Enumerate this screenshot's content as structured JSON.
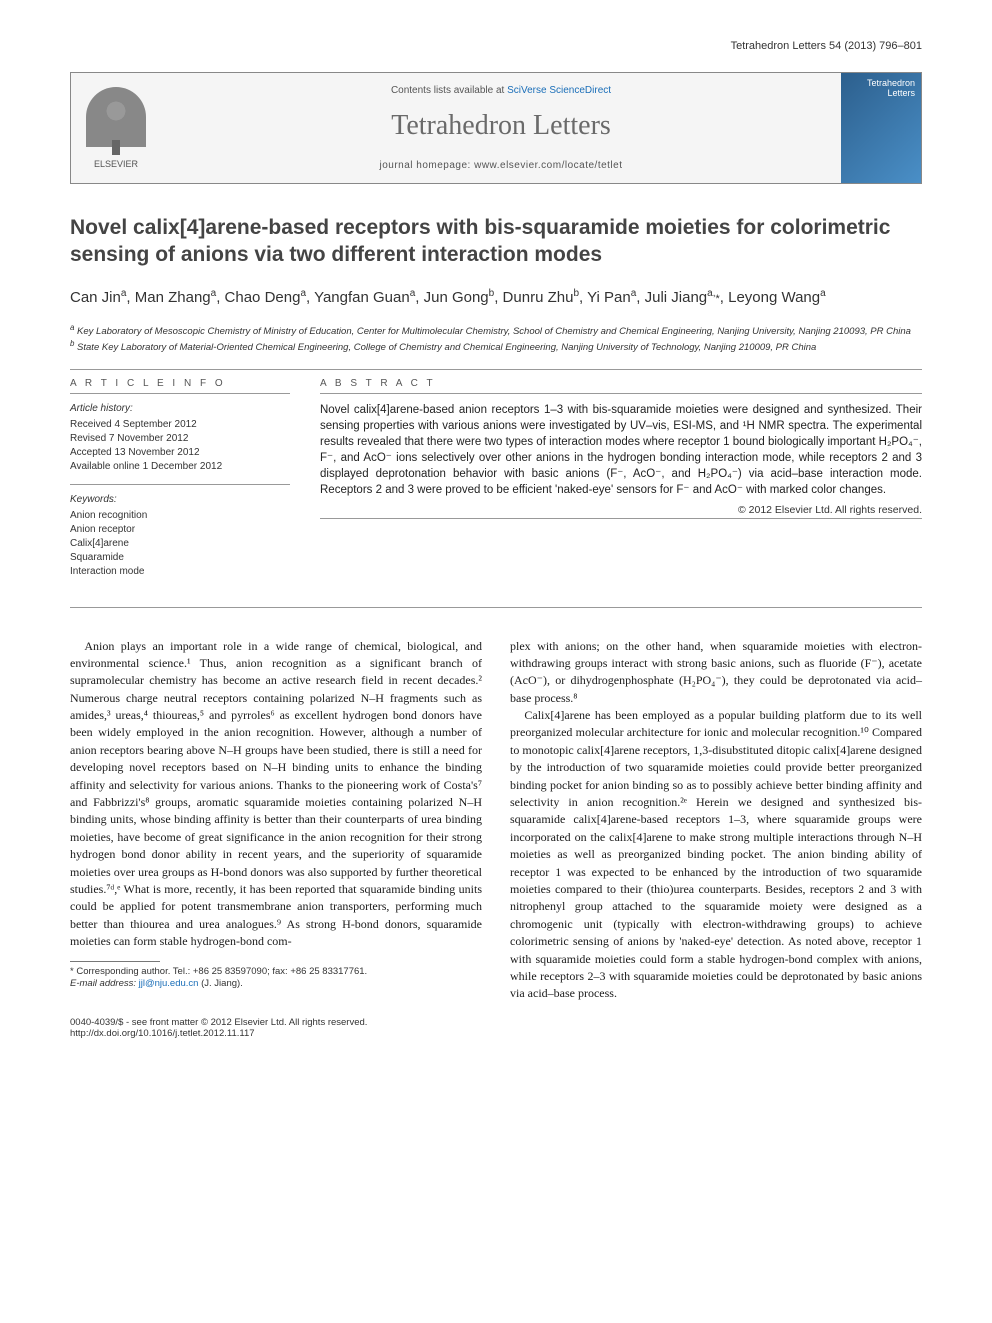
{
  "running_head": "Tetrahedron Letters 54 (2013) 796–801",
  "header": {
    "contents_prefix": "Contents lists available at ",
    "contents_link": "SciVerse ScienceDirect",
    "journal_name": "Tetrahedron Letters",
    "homepage_label": "journal homepage: ",
    "homepage_url": "www.elsevier.com/locate/tetlet",
    "publisher": "ELSEVIER",
    "cover_title": "Tetrahedron Letters"
  },
  "title": "Novel calix[4]arene-based receptors with bis-squaramide moieties for colorimetric sensing of anions via two different interaction modes",
  "authors_html": "Can Jin<sup>a</sup>, Man Zhang<sup>a</sup>, Chao Deng<sup>a</sup>, Yangfan Guan<sup>a</sup>, Jun Gong<sup>b</sup>, Dunru Zhu<sup>b</sup>, Yi Pan<sup>a</sup>, Juli Jiang<sup>a,</sup><span class='corr'>*</span>, Leyong Wang<sup>a</sup>",
  "affiliations": {
    "a": "Key Laboratory of Mesoscopic Chemistry of Ministry of Education, Center for Multimolecular Chemistry, School of Chemistry and Chemical Engineering, Nanjing University, Nanjing 210093, PR China",
    "b": "State Key Laboratory of Material-Oriented Chemical Engineering, College of Chemistry and Chemical Engineering, Nanjing University of Technology, Nanjing 210009, PR China"
  },
  "article_info": {
    "heading": "A R T I C L E   I N F O",
    "history_label": "Article history:",
    "received": "Received 4 September 2012",
    "revised": "Revised 7 November 2012",
    "accepted": "Accepted 13 November 2012",
    "online": "Available online 1 December 2012",
    "keywords_label": "Keywords:",
    "keywords": [
      "Anion recognition",
      "Anion receptor",
      "Calix[4]arene",
      "Squaramide",
      "Interaction mode"
    ]
  },
  "abstract": {
    "heading": "A B S T R A C T",
    "text": "Novel calix[4]arene-based anion receptors 1–3 with bis-squaramide moieties were designed and synthesized. Their sensing properties with various anions were investigated by UV–vis, ESI-MS, and ¹H NMR spectra. The experimental results revealed that there were two types of interaction modes where receptor 1 bound biologically important H₂PO₄⁻, F⁻, and AcO⁻ ions selectively over other anions in the hydrogen bonding interaction mode, while receptors 2 and 3 displayed deprotonation behavior with basic anions (F⁻, AcO⁻, and H₂PO₄⁻) via acid–base interaction mode. Receptors 2 and 3 were proved to be efficient 'naked-eye' sensors for F⁻ and AcO⁻ with marked color changes.",
    "copyright": "© 2012 Elsevier Ltd. All rights reserved."
  },
  "body": {
    "p1": "Anion plays an important role in a wide range of chemical, biological, and environmental science.¹ Thus, anion recognition as a significant branch of supramolecular chemistry has become an active research field in recent decades.² Numerous charge neutral receptors containing polarized N–H fragments such as amides,³ ureas,⁴ thioureas,⁵ and pyrroles⁶ as excellent hydrogen bond donors have been widely employed in the anion recognition. However, although a number of anion receptors bearing above N–H groups have been studied, there is still a need for developing novel receptors based on N–H binding units to enhance the binding affinity and selectivity for various anions. Thanks to the pioneering work of Costa's⁷ and Fabbrizzi's⁸ groups, aromatic squaramide moieties containing polarized N–H binding units, whose binding affinity is better than their counterparts of urea binding moieties, have become of great significance in the anion recognition for their strong hydrogen bond donor ability in recent years, and the superiority of squaramide moieties over urea groups as H-bond donors was also supported by further theoretical studies.⁷ᵈ,ᵉ What is more, recently, it has been reported that squaramide binding units could be applied for potent transmembrane anion transporters, performing much better than thiourea and urea analogues.⁹ As strong H-bond donors, squaramide moieties can form stable hydrogen-bond com-",
    "p2_start": "plex with anions; on the other hand, when squaramide moieties with electron-withdrawing groups interact with strong basic anions, such as fluoride (F⁻), acetate (AcO⁻), or dihydrogenphosphate (H₂PO₄⁻), they could be deprotonated via acid–base process.⁸",
    "p3": "Calix[4]arene has been employed as a popular building platform due to its well preorganized molecular architecture for ionic and molecular recognition.¹⁰ Compared to monotopic calix[4]arene receptors, 1,3-disubstituted ditopic calix[4]arene designed by the introduction of two squaramide moieties could provide better preorganized binding pocket for anion binding so as to possibly achieve better binding affinity and selectivity in anion recognition.²ᵉ Herein we designed and synthesized bis-squaramide calix[4]arene-based receptors 1–3, where squaramide groups were incorporated on the calix[4]arene to make strong multiple interactions through N–H moieties as well as preorganized binding pocket. The anion binding ability of receptor 1 was expected to be enhanced by the introduction of two squaramide moieties compared to their (thio)urea counterparts. Besides, receptors 2 and 3 with nitrophenyl group attached to the squaramide moiety were designed as a chromogenic unit (typically with electron-withdrawing groups) to achieve colorimetric sensing of anions by 'naked-eye' detection. As noted above, receptor 1 with squaramide moieties could form a stable hydrogen-bond complex with anions, while receptors 2–3 with squaramide moieties could be deprotonated by basic anions via acid–base process."
  },
  "footnote": {
    "corresponding": "* Corresponding author. Tel.: +86 25 83597090; fax: +86 25 83317761.",
    "email_label": "E-mail address: ",
    "email": "jjl@nju.edu.cn",
    "email_suffix": " (J. Jiang)."
  },
  "footer": {
    "left_line1": "0040-4039/$ - see front matter © 2012 Elsevier Ltd. All rights reserved.",
    "left_line2": "http://dx.doi.org/10.1016/j.tetlet.2012.11.117"
  },
  "colors": {
    "link": "#1a6eb8",
    "journal_name": "#6a6a6a",
    "border": "#999999",
    "text": "#1a1a1a"
  }
}
